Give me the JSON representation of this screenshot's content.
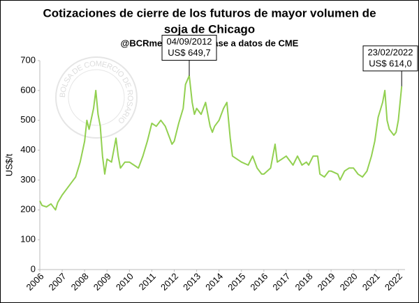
{
  "chart_data": {
    "type": "line",
    "title": [
      "Cotizaciones de cierre de los futuros de mayor volumen de",
      "soja de Chicago"
    ],
    "subtitle": "@BCRmercados en base a datos de CME",
    "y_label": "US$/t",
    "watermark": "BOLSA DE COMERCIO DE ROSARIO",
    "xlim": [
      2006,
      2022.3
    ],
    "xticks": [
      2006,
      2007,
      2008,
      2009,
      2010,
      2011,
      2012,
      2013,
      2014,
      2015,
      2016,
      2017,
      2018,
      2019,
      2020,
      2021,
      2022
    ],
    "ylim": [
      0,
      700
    ],
    "yticks": [
      0,
      100,
      200,
      300,
      400,
      500,
      600,
      700
    ],
    "grid": false,
    "series": [
      {
        "color": "#92d050",
        "x": [
          2006.0,
          2006.1,
          2006.3,
          2006.5,
          2006.7,
          2006.8,
          2007.0,
          2007.2,
          2007.4,
          2007.6,
          2007.8,
          2008.0,
          2008.1,
          2008.2,
          2008.4,
          2008.5,
          2008.6,
          2008.7,
          2008.8,
          2008.9,
          2009.0,
          2009.2,
          2009.4,
          2009.5,
          2009.6,
          2009.8,
          2010.0,
          2010.2,
          2010.4,
          2010.6,
          2010.8,
          2011.0,
          2011.2,
          2011.4,
          2011.6,
          2011.8,
          2011.9,
          2012.0,
          2012.2,
          2012.4,
          2012.5,
          2012.67,
          2012.8,
          2012.9,
          2013.0,
          2013.2,
          2013.4,
          2013.5,
          2013.6,
          2013.7,
          2013.8,
          2014.0,
          2014.2,
          2014.35,
          2014.5,
          2014.6,
          2014.8,
          2015.0,
          2015.3,
          2015.5,
          2015.7,
          2015.9,
          2016.0,
          2016.3,
          2016.5,
          2016.6,
          2016.8,
          2017.0,
          2017.3,
          2017.5,
          2017.7,
          2017.9,
          2018.0,
          2018.2,
          2018.4,
          2018.5,
          2018.7,
          2018.9,
          2019.0,
          2019.3,
          2019.4,
          2019.6,
          2019.8,
          2020.0,
          2020.2,
          2020.4,
          2020.6,
          2020.8,
          2020.95,
          2021.1,
          2021.3,
          2021.4,
          2021.5,
          2021.6,
          2021.8,
          2021.9,
          2022.0,
          2022.15
        ],
        "values": [
          230,
          215,
          210,
          220,
          200,
          225,
          250,
          270,
          290,
          310,
          360,
          430,
          500,
          470,
          540,
          600,
          520,
          480,
          380,
          320,
          370,
          360,
          440,
          380,
          340,
          360,
          360,
          350,
          340,
          380,
          430,
          490,
          480,
          500,
          480,
          440,
          420,
          430,
          490,
          540,
          620,
          649.7,
          560,
          520,
          540,
          520,
          560,
          520,
          480,
          460,
          480,
          500,
          540,
          560,
          440,
          380,
          370,
          360,
          350,
          380,
          340,
          320,
          320,
          340,
          420,
          360,
          370,
          380,
          350,
          380,
          350,
          360,
          350,
          380,
          380,
          320,
          310,
          330,
          330,
          320,
          300,
          330,
          340,
          340,
          320,
          310,
          330,
          380,
          430,
          510,
          560,
          600,
          500,
          470,
          450,
          460,
          500,
          614.0
        ]
      }
    ],
    "annotations": [
      {
        "lines": [
          "04/09/2012",
          "US$ 649,7"
        ],
        "x": 2012.67,
        "y": 649.7
      },
      {
        "lines": [
          "23/02/2022",
          "US$ 614,0"
        ],
        "x": 2022.15,
        "y": 614.0
      }
    ]
  }
}
